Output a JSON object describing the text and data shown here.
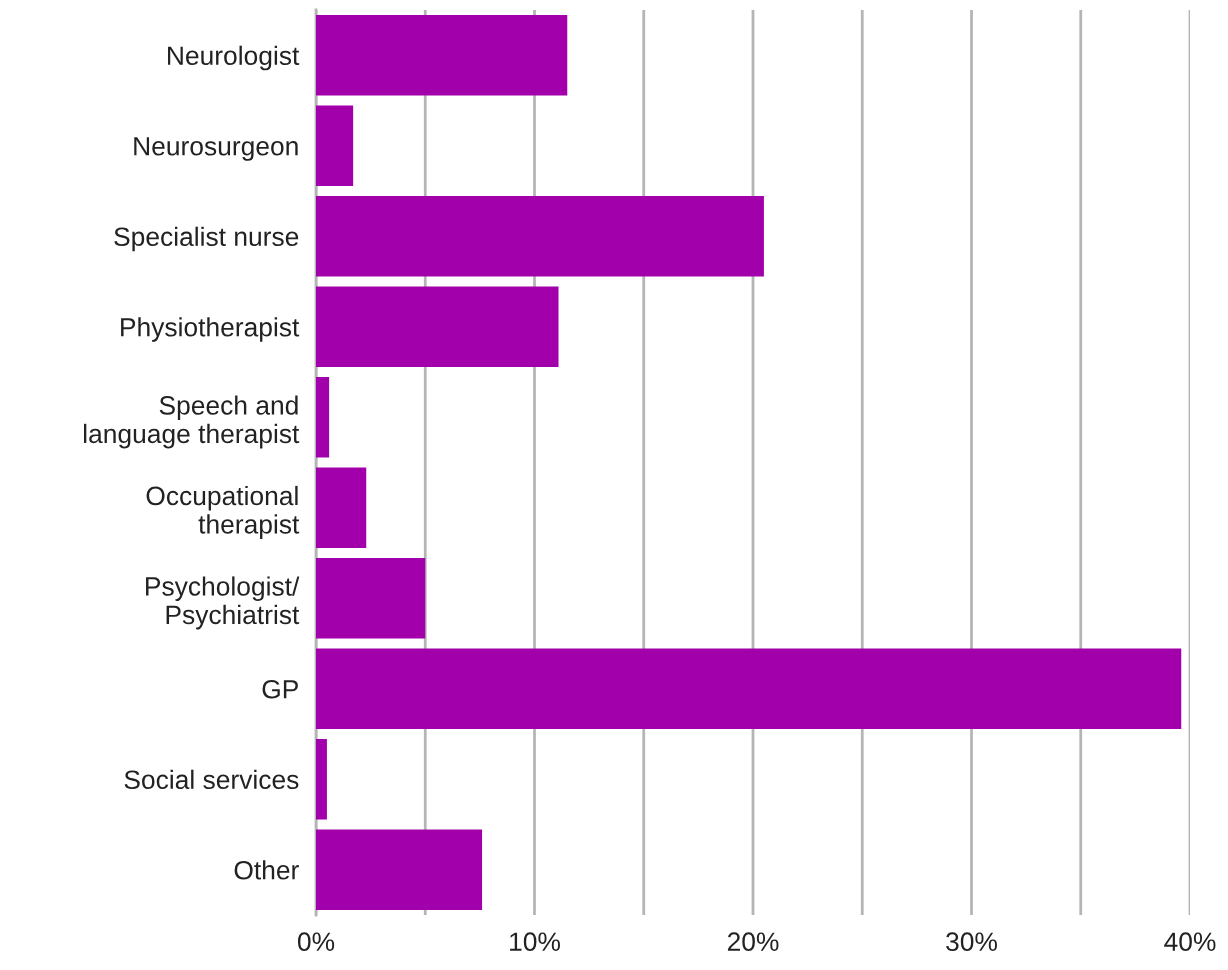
{
  "chart_data": {
    "type": "bar",
    "orientation": "horizontal",
    "categories": [
      "Neurologist",
      "Neurosurgeon",
      "Specialist nurse",
      "Physiotherapist",
      "Speech and\nlanguage therapist",
      "Occupational\ntherapist",
      "Psychologist/\nPsychiatrist",
      "GP",
      "Social services",
      "Other"
    ],
    "values": [
      11.5,
      1.7,
      20.5,
      11.1,
      0.6,
      2.3,
      5.0,
      39.6,
      0.5,
      7.6
    ],
    "color": "#a100aa",
    "xlim": [
      0,
      40
    ],
    "xticks": [
      {
        "value": 0,
        "label": "0%"
      },
      {
        "value": 5,
        "label": null
      },
      {
        "value": 10,
        "label": "10%"
      },
      {
        "value": 15,
        "label": null
      },
      {
        "value": 20,
        "label": "20%"
      },
      {
        "value": 25,
        "label": null
      },
      {
        "value": 30,
        "label": "30%"
      },
      {
        "value": 35,
        "label": null
      },
      {
        "value": 40,
        "label": "40%"
      }
    ],
    "grid": "x",
    "legend": false
  }
}
